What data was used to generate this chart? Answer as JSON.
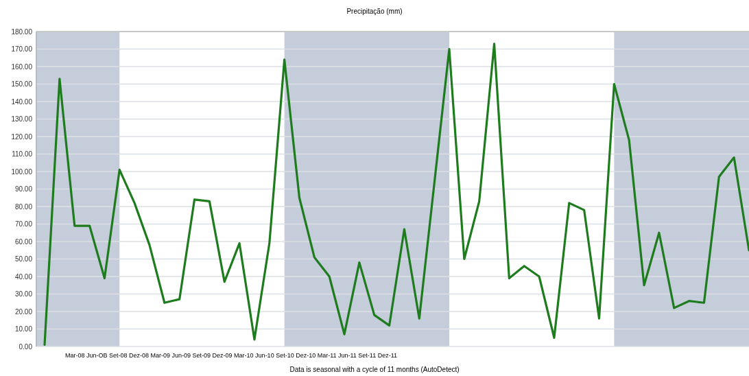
{
  "chart_data": {
    "type": "line",
    "title": "Precipitação (mm)",
    "categories": [
      null,
      null,
      null,
      null,
      null,
      null,
      null,
      null,
      null,
      null,
      null,
      null,
      null,
      null,
      null,
      null,
      null,
      null,
      null,
      null,
      null,
      null,
      null,
      null,
      null,
      null,
      null,
      null,
      null,
      null,
      null,
      null,
      null,
      null,
      null,
      null,
      null,
      null,
      null,
      null,
      null,
      null,
      null,
      null,
      null,
      null,
      null,
      null
    ],
    "series": [
      {
        "color": "#1e7b1e",
        "values": [
          1,
          153,
          69,
          69,
          39,
          101,
          82,
          58,
          25,
          27,
          84,
          83,
          37,
          59,
          4,
          59,
          164,
          85,
          51,
          40,
          7,
          48,
          18,
          12,
          67,
          16,
          93,
          170,
          50,
          83,
          173,
          39,
          46,
          40,
          5,
          82,
          78,
          16,
          150,
          118,
          35,
          65,
          22,
          26,
          25,
          97,
          108,
          55
        ]
      }
    ],
    "ylim": [
      0,
      180
    ],
    "yticks": [
      {
        "value": 0,
        "label": "0.00"
      },
      {
        "value": 10,
        "label": "10.00"
      },
      {
        "value": 20,
        "label": "20.00"
      },
      {
        "value": 30,
        "label": "30.00"
      },
      {
        "value": 40,
        "label": "40.00"
      },
      {
        "value": 50,
        "label": "50.00"
      },
      {
        "value": 60,
        "label": "60.00"
      },
      {
        "value": 70,
        "label": "70.00"
      },
      {
        "value": 80,
        "label": "80.00"
      },
      {
        "value": 90,
        "label": "90.00"
      },
      {
        "value": 100,
        "label": "100.00"
      },
      {
        "value": 110,
        "label": "110.00"
      },
      {
        "value": 120,
        "label": "120.00"
      },
      {
        "value": 130,
        "label": "130.00"
      },
      {
        "value": 140,
        "label": "140.00"
      },
      {
        "value": 150,
        "label": "150.00"
      },
      {
        "value": 160,
        "label": "160.00"
      },
      {
        "value": 170,
        "label": "170.00"
      },
      {
        "value": 180,
        "label": "180.00"
      }
    ],
    "grid": "y",
    "marker": "none",
    "line_style": "solid",
    "annotations": [
      "Mar-08 Jun-OB Set-08 Dez-08 Mar-09 Jun-09 Set-09 Dez-09 Mar-10 Jun-10 Set-10 Dez-10 Mar-11 Jun-11 Set-11 Dez-11",
      "Data is seasonal with a cycle of 11 months (AutoDetect)"
    ]
  }
}
